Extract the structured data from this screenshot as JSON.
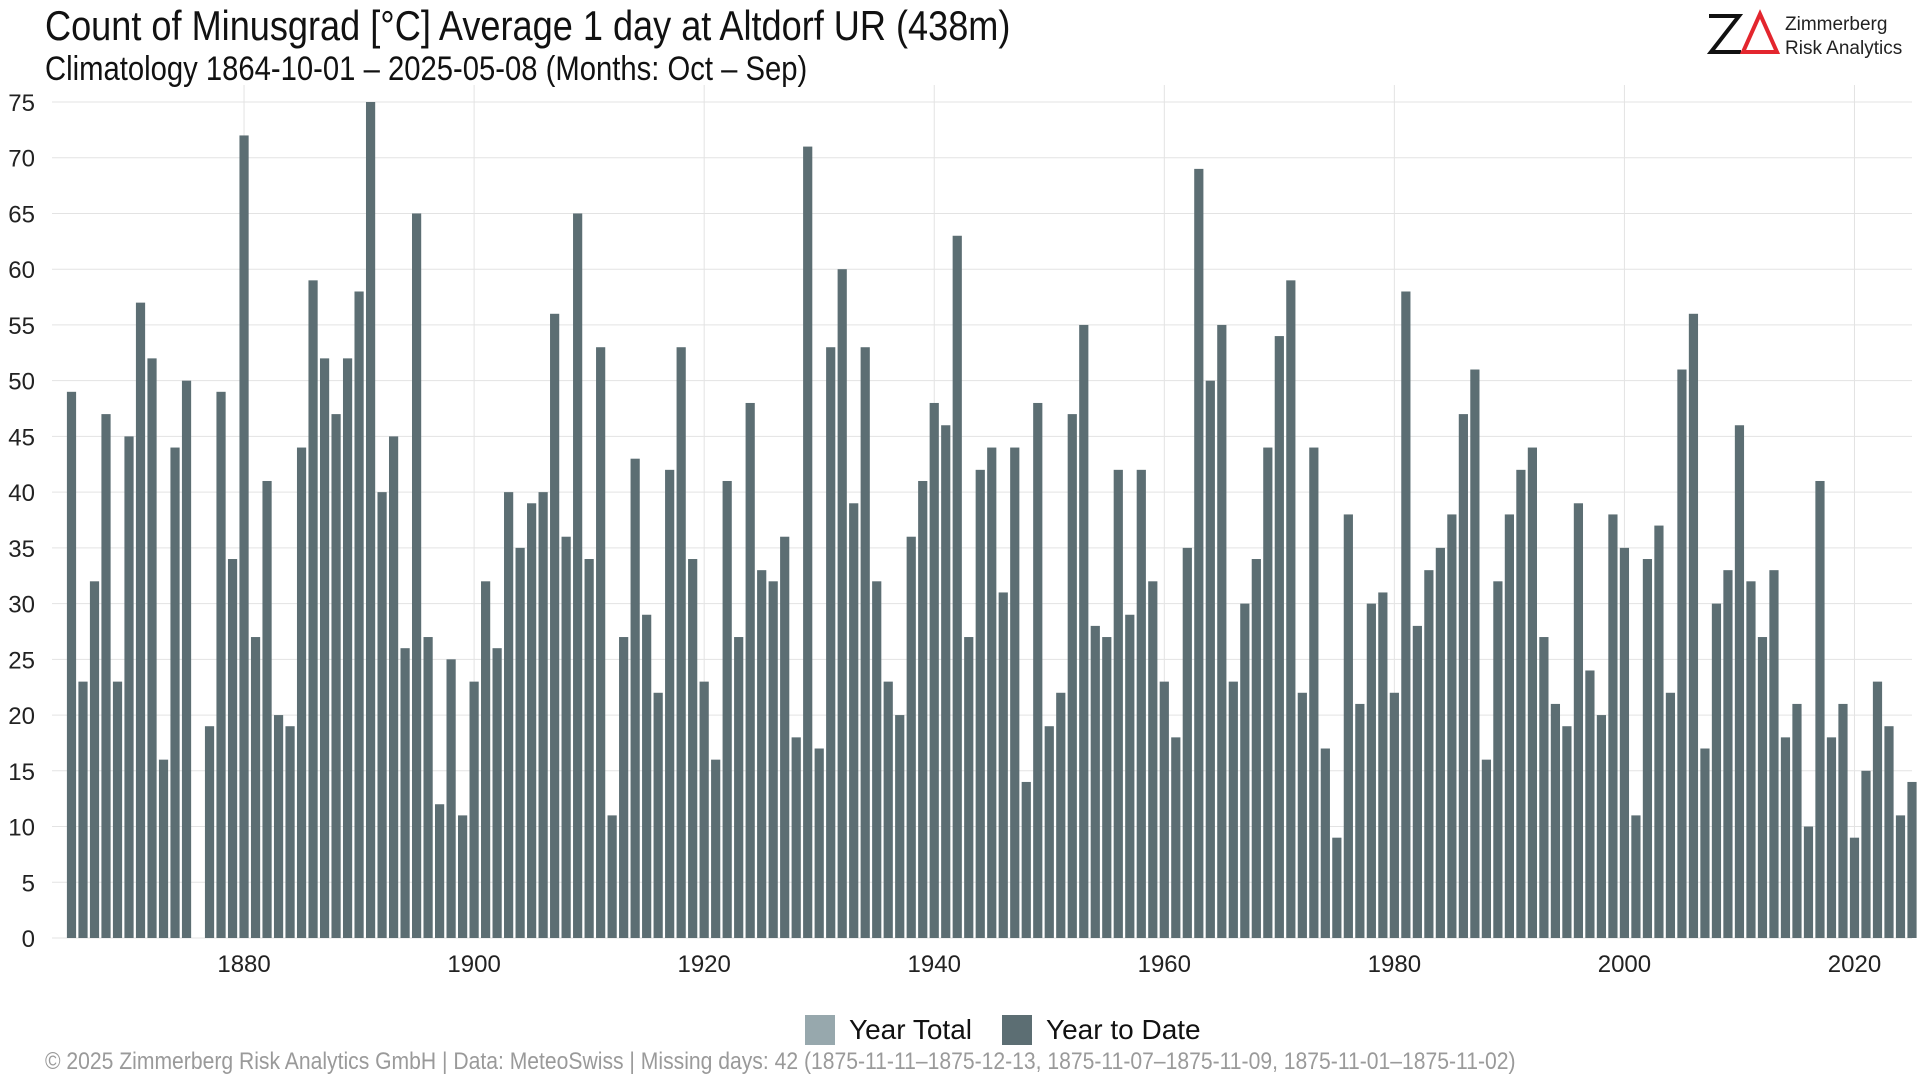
{
  "header": {
    "title": "Count of Minusgrad [°C] Average 1 day at Altdorf  UR (438m)",
    "subtitle": "Climatology 1864-10-01 – 2025-05-08 (Months: Oct – Sep)"
  },
  "logo": {
    "line1": "Zimmerberg",
    "line2": "Risk Analytics",
    "mark_color": "#e3262e"
  },
  "legend": {
    "items": [
      {
        "label": "Year Total",
        "color": "#97a8ad"
      },
      {
        "label": "Year to Date",
        "color": "#5c6e73"
      }
    ]
  },
  "footer": "©  2025 Zimmerberg Risk Analytics GmbH | Data: MeteoSwiss | Missing days: 42 (1875-11-11–1875-12-13, 1875-11-07–1875-11-09, 1875-11-01–1875-11-02)",
  "chart_data": {
    "type": "bar",
    "title": "Count of Minusgrad [°C] Average 1 day at Altdorf  UR (438m)",
    "xlabel": "",
    "ylabel": "",
    "ylim": [
      0,
      75
    ],
    "xlim": [
      1864,
      2025
    ],
    "yticks": [
      0,
      5,
      10,
      15,
      20,
      25,
      30,
      35,
      40,
      45,
      50,
      55,
      60,
      65,
      70,
      75
    ],
    "xticks": [
      1880,
      1900,
      1920,
      1940,
      1960,
      1980,
      2000,
      2020
    ],
    "grid": true,
    "legend_position": "bottom",
    "bar_color": "#5c6e73",
    "x": [
      1865,
      1866,
      1867,
      1868,
      1869,
      1870,
      1871,
      1872,
      1873,
      1874,
      1875,
      1876,
      1877,
      1878,
      1879,
      1880,
      1881,
      1882,
      1883,
      1884,
      1885,
      1886,
      1887,
      1888,
      1889,
      1890,
      1891,
      1892,
      1893,
      1894,
      1895,
      1896,
      1897,
      1898,
      1899,
      1900,
      1901,
      1902,
      1903,
      1904,
      1905,
      1906,
      1907,
      1908,
      1909,
      1910,
      1911,
      1912,
      1913,
      1914,
      1915,
      1916,
      1917,
      1918,
      1919,
      1920,
      1921,
      1922,
      1923,
      1924,
      1925,
      1926,
      1927,
      1928,
      1929,
      1930,
      1931,
      1932,
      1933,
      1934,
      1935,
      1936,
      1937,
      1938,
      1939,
      1940,
      1941,
      1942,
      1943,
      1944,
      1945,
      1946,
      1947,
      1948,
      1949,
      1950,
      1951,
      1952,
      1953,
      1954,
      1955,
      1956,
      1957,
      1958,
      1959,
      1960,
      1961,
      1962,
      1963,
      1964,
      1965,
      1966,
      1967,
      1968,
      1969,
      1970,
      1971,
      1972,
      1973,
      1974,
      1975,
      1976,
      1977,
      1978,
      1979,
      1980,
      1981,
      1982,
      1983,
      1984,
      1985,
      1986,
      1987,
      1988,
      1989,
      1990,
      1991,
      1992,
      1993,
      1994,
      1995,
      1996,
      1997,
      1998,
      1999,
      2000,
      2001,
      2002,
      2003,
      2004,
      2005,
      2006,
      2007,
      2008,
      2009,
      2010,
      2011,
      2012,
      2013,
      2014,
      2015,
      2016,
      2017,
      2018,
      2019,
      2020,
      2021,
      2022,
      2023,
      2024,
      2025
    ],
    "series": [
      {
        "name": "Year to Date",
        "values": [
          49,
          23,
          32,
          47,
          23,
          45,
          57,
          52,
          16,
          44,
          50,
          0,
          19,
          49,
          34,
          72,
          27,
          41,
          20,
          19,
          44,
          59,
          52,
          47,
          52,
          58,
          75,
          40,
          45,
          26,
          65,
          27,
          12,
          25,
          11,
          23,
          32,
          26,
          40,
          35,
          39,
          40,
          56,
          36,
          65,
          34,
          53,
          11,
          27,
          43,
          29,
          22,
          42,
          53,
          34,
          23,
          16,
          41,
          27,
          48,
          33,
          32,
          36,
          18,
          71,
          17,
          53,
          60,
          39,
          53,
          32,
          23,
          20,
          36,
          41,
          48,
          46,
          63,
          27,
          42,
          44,
          31,
          44,
          14,
          48,
          19,
          22,
          47,
          55,
          28,
          27,
          42,
          29,
          42,
          32,
          23,
          18,
          35,
          69,
          50,
          55,
          23,
          30,
          34,
          44,
          54,
          59,
          22,
          44,
          17,
          9,
          38,
          21,
          30,
          31,
          22,
          58,
          28,
          33,
          35,
          38,
          47,
          51,
          16,
          32,
          38,
          42,
          44,
          27,
          21,
          19,
          39,
          24,
          20,
          38,
          35,
          11,
          34,
          37,
          22,
          51,
          56,
          17,
          30,
          33,
          46,
          32,
          27,
          33,
          18,
          21,
          10,
          41,
          18,
          21,
          9,
          15,
          23,
          19,
          11,
          14
        ]
      }
    ]
  }
}
